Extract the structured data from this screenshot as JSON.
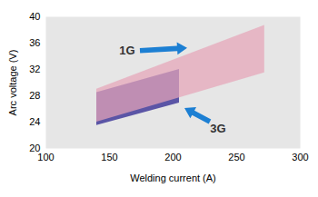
{
  "chart_data": {
    "type": "area_range",
    "x_label": "Welding current (A)",
    "y_label": "Arc voltage (V)",
    "xlim": [
      100,
      300
    ],
    "xticks": [
      100,
      150,
      200,
      250,
      300
    ],
    "ylim": [
      20,
      40
    ],
    "yticks": [
      20,
      24,
      28,
      32,
      36,
      40
    ],
    "series": [
      {
        "name": "1G",
        "color": "#e6a5b9",
        "x": [
          140,
          272
        ],
        "low": [
          24,
          31.5
        ],
        "high": [
          29,
          38.7
        ]
      },
      {
        "name": "3G",
        "color": "#5b55a6",
        "x": [
          140,
          205
        ],
        "low": [
          23.5,
          26.9
        ],
        "high": [
          28.5,
          32
        ]
      }
    ]
  }
}
